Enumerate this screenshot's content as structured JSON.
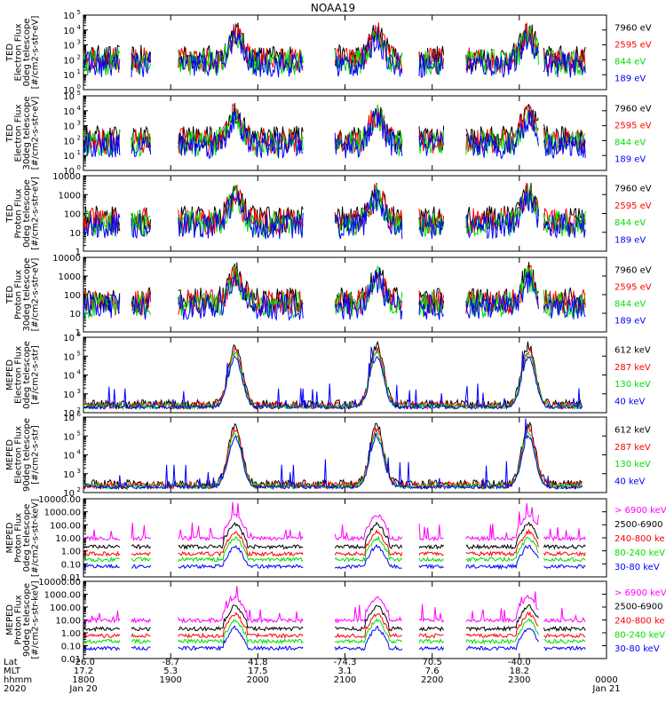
{
  "title": "NOAA19",
  "chart_data": [
    {
      "type": "line",
      "ylabel": [
        "TED",
        "Electron Flux",
        "0deg telescope",
        "[#/cm2-s-str-eV]"
      ],
      "yscale": "log",
      "ylim": [
        1,
        100000
      ],
      "yticks": [
        {
          "label": "10",
          "sup": "5",
          "value": 100000
        },
        {
          "label": "10",
          "sup": "4",
          "value": 10000
        },
        {
          "label": "10",
          "sup": "3",
          "value": 1000
        },
        {
          "label": "10",
          "sup": "2",
          "value": 100
        },
        {
          "label": "10",
          "sup": "1",
          "value": 10
        },
        {
          "label": "10",
          "sup": "0",
          "value": 1
        }
      ],
      "legend": [
        {
          "label": "7960 eV",
          "color": "#000000"
        },
        {
          "label": "2595 eV",
          "color": "#ff0000"
        },
        {
          "label": "844 eV",
          "color": "#00dd00"
        },
        {
          "label": "189 eV",
          "color": "#0000ff"
        }
      ]
    },
    {
      "type": "line",
      "ylabel": [
        "TED",
        "Electron Flux",
        "30deg telescope",
        "[#/cm2-s-str-eV]"
      ],
      "yscale": "log",
      "ylim": [
        1,
        100000
      ],
      "yticks": [
        {
          "label": "10",
          "sup": "5",
          "value": 100000
        },
        {
          "label": "10",
          "sup": "4",
          "value": 10000
        },
        {
          "label": "10",
          "sup": "3",
          "value": 1000
        },
        {
          "label": "10",
          "sup": "2",
          "value": 100
        },
        {
          "label": "10",
          "sup": "1",
          "value": 10
        },
        {
          "label": "10",
          "sup": "0",
          "value": 1
        }
      ],
      "legend": [
        {
          "label": "7960 eV",
          "color": "#000000"
        },
        {
          "label": "2595 eV",
          "color": "#ff0000"
        },
        {
          "label": "844 eV",
          "color": "#00dd00"
        },
        {
          "label": "189 eV",
          "color": "#0000ff"
        }
      ]
    },
    {
      "type": "line",
      "ylabel": [
        "TED",
        "Proton Flux",
        "0deg telescope",
        "[#/cm2-s-str-eV]"
      ],
      "yscale": "log",
      "ylim": [
        1,
        10000
      ],
      "yticks": [
        {
          "label": "10000",
          "value": 10000
        },
        {
          "label": "1000",
          "value": 1000
        },
        {
          "label": "100",
          "value": 100
        },
        {
          "label": "10",
          "value": 10
        },
        {
          "label": "1",
          "value": 1
        }
      ],
      "legend": [
        {
          "label": "7960 eV",
          "color": "#000000"
        },
        {
          "label": "2595 eV",
          "color": "#ff0000"
        },
        {
          "label": "844 eV",
          "color": "#00dd00"
        },
        {
          "label": "189 eV",
          "color": "#0000ff"
        }
      ]
    },
    {
      "type": "line",
      "ylabel": [
        "TED",
        "Proton Flux",
        "30deg telescope",
        "[#/cm2-s-str-eV]"
      ],
      "yscale": "log",
      "ylim": [
        1,
        10000
      ],
      "yticks": [
        {
          "label": "10000",
          "value": 10000
        },
        {
          "label": "1000",
          "value": 1000
        },
        {
          "label": "100",
          "value": 100
        },
        {
          "label": "10",
          "value": 10
        },
        {
          "label": "1",
          "value": 1
        }
      ],
      "legend": [
        {
          "label": "7960 eV",
          "color": "#000000"
        },
        {
          "label": "2595 eV",
          "color": "#ff0000"
        },
        {
          "label": "844 eV",
          "color": "#00dd00"
        },
        {
          "label": "189 eV",
          "color": "#0000ff"
        }
      ]
    },
    {
      "type": "line",
      "ylabel": [
        "MEPED",
        "Electron Flux",
        "0deg telescope",
        "[#/cm2-s-str]"
      ],
      "yscale": "log",
      "ylim": [
        100,
        1000000
      ],
      "yticks": [
        {
          "label": "10",
          "sup": "6",
          "value": 1000000
        },
        {
          "label": "10",
          "sup": "5",
          "value": 100000
        },
        {
          "label": "10",
          "sup": "4",
          "value": 10000
        },
        {
          "label": "10",
          "sup": "3",
          "value": 1000
        },
        {
          "label": "10",
          "sup": "2",
          "value": 100
        }
      ],
      "legend": [
        {
          "label": "612 keV",
          "color": "#000000"
        },
        {
          "label": "287 keV",
          "color": "#ff0000"
        },
        {
          "label": "130 keV",
          "color": "#00dd00"
        },
        {
          "label": "40 keV",
          "color": "#0000ff"
        }
      ]
    },
    {
      "type": "line",
      "ylabel": [
        "MEPED",
        "Electron Flux",
        "90deg telescope",
        "[#/cm2-s-str]"
      ],
      "yscale": "log",
      "ylim": [
        100,
        1000000
      ],
      "yticks": [
        {
          "label": "10",
          "sup": "6",
          "value": 1000000
        },
        {
          "label": "10",
          "sup": "5",
          "value": 100000
        },
        {
          "label": "10",
          "sup": "4",
          "value": 10000
        },
        {
          "label": "10",
          "sup": "3",
          "value": 1000
        },
        {
          "label": "10",
          "sup": "2",
          "value": 100
        }
      ],
      "legend": [
        {
          "label": "612 keV",
          "color": "#000000"
        },
        {
          "label": "287 keV",
          "color": "#ff0000"
        },
        {
          "label": "130 keV",
          "color": "#00dd00"
        },
        {
          "label": "40 keV",
          "color": "#0000ff"
        }
      ]
    },
    {
      "type": "line",
      "ylabel": [
        "MEPED",
        "Proton Flux",
        "0deg telescope",
        "[#/cm2-s-str-keV]"
      ],
      "yscale": "log",
      "ylim": [
        0.01,
        10000
      ],
      "yticks": [
        {
          "label": "10000.00",
          "value": 10000
        },
        {
          "label": "1000.00",
          "value": 1000
        },
        {
          "label": "100.00",
          "value": 100
        },
        {
          "label": "10.00",
          "value": 10
        },
        {
          "label": "1.00",
          "value": 1
        },
        {
          "label": "0.10",
          "value": 0.1
        },
        {
          "label": "0.01",
          "value": 0.01
        }
      ],
      "legend": [
        {
          "label": "> 6900 keV",
          "color": "#ff00ff"
        },
        {
          "label": "2500-6900",
          "color": "#000000"
        },
        {
          "label": "240-800 ke",
          "color": "#ff0000"
        },
        {
          "label": "80-240 keV",
          "color": "#00dd00"
        },
        {
          "label": "30-80 keV",
          "color": "#0000ff"
        }
      ]
    },
    {
      "type": "line",
      "ylabel": [
        "MEPED",
        "Proton Flux",
        "90deg telescope",
        "[#/cm2-s-str-keV]"
      ],
      "yscale": "log",
      "ylim": [
        0.01,
        10000
      ],
      "yticks": [
        {
          "label": "10000.00",
          "value": 10000
        },
        {
          "label": "1000.00",
          "value": 1000
        },
        {
          "label": "100.00",
          "value": 100
        },
        {
          "label": "10.00",
          "value": 10
        },
        {
          "label": "1.00",
          "value": 1
        },
        {
          "label": "0.10",
          "value": 0.1
        },
        {
          "label": "0.01",
          "value": 0.01
        }
      ],
      "legend": [
        {
          "label": "> 6900 keV",
          "color": "#ff00ff"
        },
        {
          "label": "2500-6900",
          "color": "#000000"
        },
        {
          "label": "240-800 ke",
          "color": "#ff0000"
        },
        {
          "label": "80-240 keV",
          "color": "#00dd00"
        },
        {
          "label": "30-80 keV",
          "color": "#0000ff"
        }
      ]
    }
  ],
  "xaxis": {
    "row_labels": [
      "Lat",
      "MLT",
      "hhmm",
      "2020"
    ],
    "tick_fractions": [
      0.0,
      0.1667,
      0.3333,
      0.5,
      0.6667,
      0.8333,
      1.0
    ],
    "ticks": [
      {
        "lat": "-26.0",
        "mlt": "17.2",
        "hhmm": "1800",
        "date": "Jan 20"
      },
      {
        "lat": "-8.7",
        "mlt": "5.3",
        "hhmm": "1900",
        "date": ""
      },
      {
        "lat": "41.8",
        "mlt": "17.5",
        "hhmm": "2000",
        "date": ""
      },
      {
        "lat": "-74.3",
        "mlt": "3.1",
        "hhmm": "2100",
        "date": ""
      },
      {
        "lat": "70.5",
        "mlt": "7.6",
        "hhmm": "2200",
        "date": ""
      },
      {
        "lat": "-40.0",
        "mlt": "18.2",
        "hhmm": "2300",
        "date": ""
      },
      {
        "lat": "",
        "mlt": "",
        "hhmm": "0000",
        "date": "Jan 21"
      }
    ]
  }
}
